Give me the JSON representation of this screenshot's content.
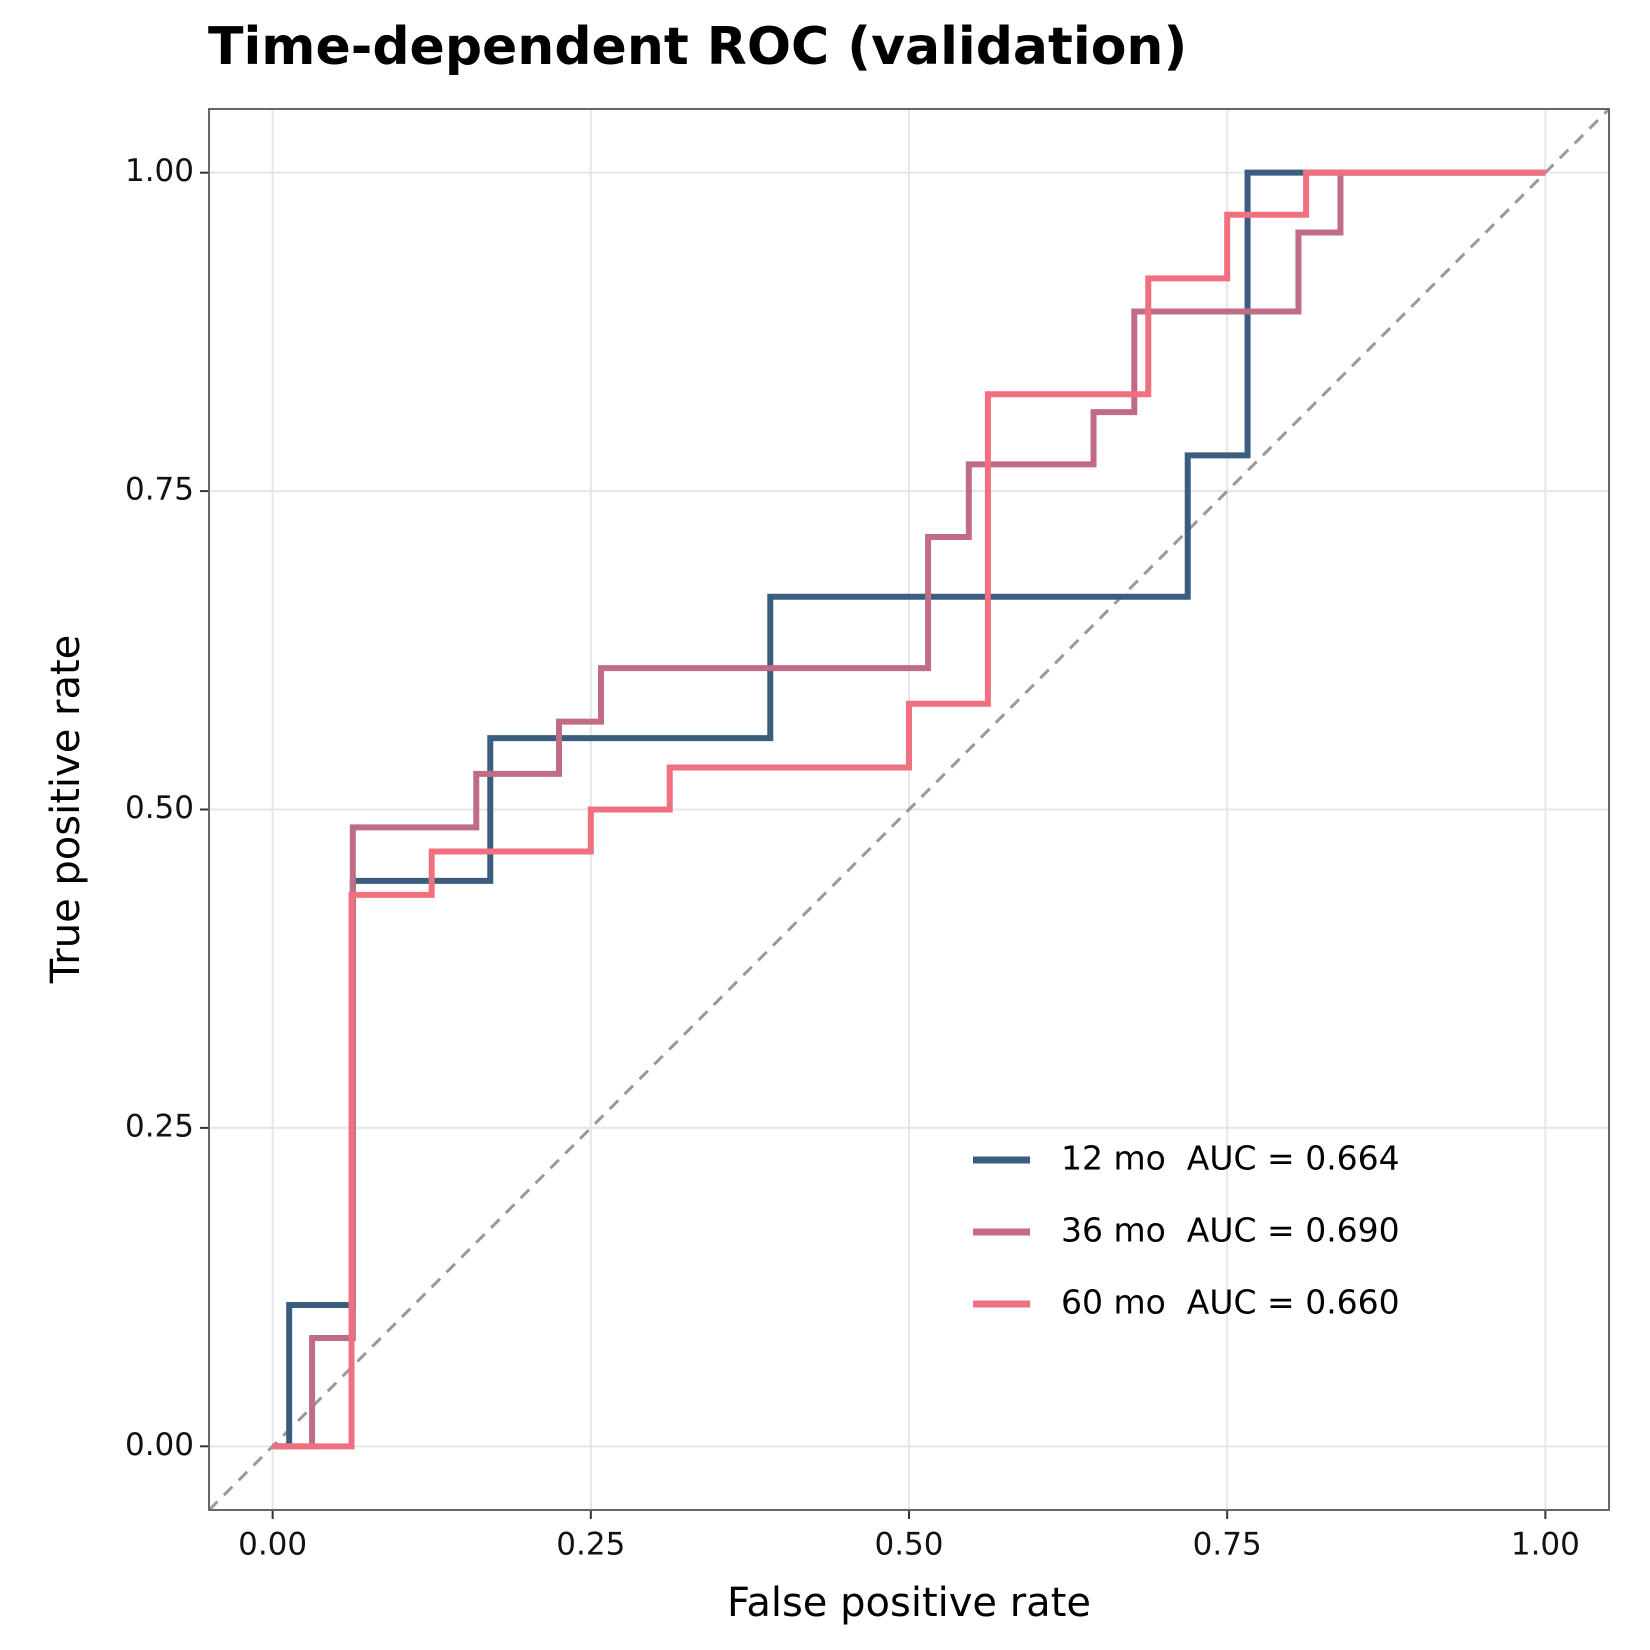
{
  "chart_data": {
    "type": "line",
    "step": true,
    "title": "Time-dependent ROC (validation)",
    "x_label": "False positive rate",
    "y_label": "True positive rate",
    "xlim": [
      -0.05,
      1.05
    ],
    "ylim": [
      -0.05,
      1.05
    ],
    "xticks": [
      {
        "value": 0,
        "label": "0.00"
      },
      {
        "value": 0.25,
        "label": "0.25"
      },
      {
        "value": 0.5,
        "label": "0.50"
      },
      {
        "value": 0.75,
        "label": "0.75"
      },
      {
        "value": 1,
        "label": "1.00"
      }
    ],
    "yticks": [
      {
        "value": 0,
        "label": "0.00"
      },
      {
        "value": 0.25,
        "label": "0.25"
      },
      {
        "value": 0.5,
        "label": "0.50"
      },
      {
        "value": 0.75,
        "label": "0.75"
      },
      {
        "value": 1,
        "label": "1.00"
      }
    ],
    "grid": true,
    "diagonal": true,
    "legend_position": "bottom-right",
    "series": [
      {
        "name": "12 mo  AUC = 0.664",
        "color": "#3b5e80",
        "x": [
          0,
          0.013,
          0.013,
          0.063,
          0.063,
          0.171,
          0.171,
          0.391,
          0.391,
          0.719,
          0.719,
          0.766,
          0.766,
          1
        ],
        "y": [
          0,
          0,
          0.111,
          0.111,
          0.444,
          0.444,
          0.556,
          0.556,
          0.667,
          0.667,
          0.778,
          0.778,
          1,
          1
        ]
      },
      {
        "name": "36 mo  AUC = 0.690",
        "color": "#c06c84",
        "x": [
          0,
          0.031,
          0.031,
          0.063,
          0.063,
          0.16,
          0.16,
          0.225,
          0.225,
          0.258,
          0.258,
          0.515,
          0.515,
          0.547,
          0.547,
          0.645,
          0.645,
          0.677,
          0.677,
          0.806,
          0.806,
          0.839,
          0.839,
          1
        ],
        "y": [
          0,
          0,
          0.085,
          0.085,
          0.486,
          0.486,
          0.528,
          0.528,
          0.569,
          0.569,
          0.611,
          0.611,
          0.714,
          0.714,
          0.771,
          0.771,
          0.812,
          0.812,
          0.891,
          0.891,
          0.953,
          0.953,
          1,
          1
        ]
      },
      {
        "name": "60 mo  AUC = 0.660",
        "color": "#f07080",
        "x": [
          0,
          0.062,
          0.062,
          0.125,
          0.125,
          0.25,
          0.25,
          0.312,
          0.312,
          0.5,
          0.5,
          0.562,
          0.562,
          0.688,
          0.688,
          0.75,
          0.75,
          0.812,
          0.812,
          1
        ],
        "y": [
          0,
          0,
          0.433,
          0.433,
          0.467,
          0.467,
          0.5,
          0.5,
          0.533,
          0.533,
          0.583,
          0.583,
          0.826,
          0.826,
          0.917,
          0.917,
          0.967,
          0.967,
          1,
          1
        ]
      }
    ]
  }
}
